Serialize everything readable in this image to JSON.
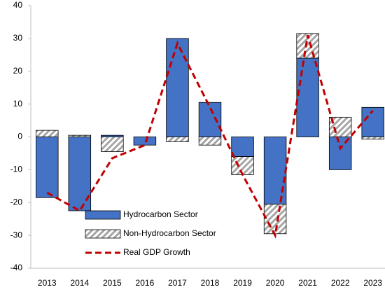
{
  "chart_data": {
    "type": "bar",
    "categories": [
      "2013",
      "2014",
      "2015",
      "2016",
      "2017",
      "2018",
      "2019",
      "2020",
      "2021",
      "2022",
      "2023"
    ],
    "series": [
      {
        "name": "Hydrocarbon Sector",
        "type": "bar",
        "color": "#4472c4",
        "values": [
          -18.5,
          -22.5,
          0.5,
          -2.5,
          30,
          10.5,
          -6,
          -20.5,
          24,
          -10,
          9
        ]
      },
      {
        "name": "Non-Hydrocarbon Sector",
        "type": "bar",
        "color": "#a6a6a6",
        "hatch": true,
        "values": [
          2,
          0.5,
          -4.5,
          0,
          -1.5,
          -2.5,
          -5.5,
          -9,
          7.5,
          6,
          -0.7
        ]
      },
      {
        "name": "Real GDP Growth",
        "type": "line",
        "color": "#c00000",
        "dashed": true,
        "values": [
          -17,
          -22.5,
          -6.5,
          -2.5,
          28.5,
          9,
          -11.5,
          -30,
          31,
          -3.5,
          8
        ]
      }
    ],
    "stacked": true,
    "ylim": [
      -40,
      40
    ],
    "yticks": [
      -40,
      -30,
      -20,
      -10,
      0,
      10,
      20,
      30,
      40
    ],
    "legend": "bottom"
  }
}
